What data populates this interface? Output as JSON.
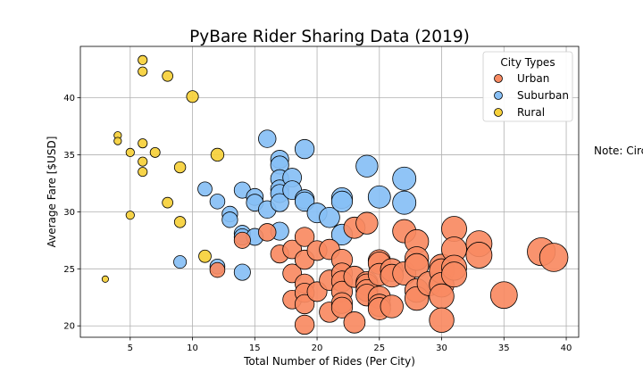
{
  "chart_data": {
    "type": "scatter",
    "title": "PyBare Rider Sharing Data (2019)",
    "xlabel": "Total Number of Rides (Per City)",
    "ylabel": "Average Fare [$USD]",
    "xlim": [
      1,
      41
    ],
    "ylim": [
      19,
      44.5
    ],
    "xticks": [
      5,
      10,
      15,
      20,
      25,
      30,
      35,
      40
    ],
    "yticks": [
      20,
      25,
      30,
      35,
      40
    ],
    "grid": true,
    "legend": {
      "title": "City Types",
      "placement": "top-right",
      "entries": [
        "Urban",
        "Suburban",
        "Rural"
      ]
    },
    "note": "Note: Circle size correlates with driver count per city.",
    "series": [
      {
        "name": "Rural",
        "color": "#f6d03a",
        "points": [
          {
            "x": 3,
            "y": 24.1
          },
          {
            "x": 4,
            "y": 36.7
          },
          {
            "x": 4,
            "y": 36.2
          },
          {
            "x": 5,
            "y": 35.2
          },
          {
            "x": 5,
            "y": 29.7
          },
          {
            "x": 6,
            "y": 43.3
          },
          {
            "x": 6,
            "y": 42.3
          },
          {
            "x": 6,
            "y": 36.0
          },
          {
            "x": 6,
            "y": 34.4
          },
          {
            "x": 6,
            "y": 33.5
          },
          {
            "x": 7,
            "y": 35.2
          },
          {
            "x": 8,
            "y": 41.9
          },
          {
            "x": 8,
            "y": 30.8
          },
          {
            "x": 9,
            "y": 33.9
          },
          {
            "x": 9,
            "y": 29.1
          },
          {
            "x": 10,
            "y": 40.1
          },
          {
            "x": 11,
            "y": 26.1
          },
          {
            "x": 12,
            "y": 35.0
          }
        ]
      },
      {
        "name": "Suburban",
        "color": "#87bff5",
        "points": [
          {
            "x": 9,
            "y": 25.6
          },
          {
            "x": 11,
            "y": 32.0
          },
          {
            "x": 12,
            "y": 30.9
          },
          {
            "x": 12,
            "y": 25.2
          },
          {
            "x": 13,
            "y": 29.8
          },
          {
            "x": 13,
            "y": 29.3
          },
          {
            "x": 14,
            "y": 31.9
          },
          {
            "x": 14,
            "y": 28.1
          },
          {
            "x": 14,
            "y": 27.8
          },
          {
            "x": 14,
            "y": 24.7
          },
          {
            "x": 15,
            "y": 31.3
          },
          {
            "x": 15,
            "y": 30.8
          },
          {
            "x": 15,
            "y": 27.8
          },
          {
            "x": 16,
            "y": 36.4
          },
          {
            "x": 16,
            "y": 30.2
          },
          {
            "x": 17,
            "y": 34.6
          },
          {
            "x": 17,
            "y": 34.1
          },
          {
            "x": 17,
            "y": 32.9
          },
          {
            "x": 17,
            "y": 32.0
          },
          {
            "x": 17,
            "y": 31.6
          },
          {
            "x": 17,
            "y": 30.8
          },
          {
            "x": 17,
            "y": 28.3
          },
          {
            "x": 18,
            "y": 33.0
          },
          {
            "x": 18,
            "y": 31.9
          },
          {
            "x": 19,
            "y": 35.5
          },
          {
            "x": 19,
            "y": 31.1
          },
          {
            "x": 19,
            "y": 30.9
          },
          {
            "x": 20,
            "y": 29.9
          },
          {
            "x": 21,
            "y": 29.5
          },
          {
            "x": 22,
            "y": 31.2
          },
          {
            "x": 22,
            "y": 30.9
          },
          {
            "x": 22,
            "y": 28.0
          },
          {
            "x": 24,
            "y": 34.0
          },
          {
            "x": 25,
            "y": 31.3
          },
          {
            "x": 27,
            "y": 32.9
          },
          {
            "x": 27,
            "y": 30.8
          }
        ]
      },
      {
        "name": "Urban",
        "color": "#f88a62",
        "points": [
          {
            "x": 12,
            "y": 24.9
          },
          {
            "x": 14,
            "y": 27.5
          },
          {
            "x": 16,
            "y": 28.2
          },
          {
            "x": 17,
            "y": 26.3
          },
          {
            "x": 18,
            "y": 26.7
          },
          {
            "x": 18,
            "y": 24.6
          },
          {
            "x": 18,
            "y": 22.3
          },
          {
            "x": 19,
            "y": 27.8
          },
          {
            "x": 19,
            "y": 25.8
          },
          {
            "x": 19,
            "y": 23.7
          },
          {
            "x": 19,
            "y": 22.9
          },
          {
            "x": 19,
            "y": 21.9
          },
          {
            "x": 19,
            "y": 20.1
          },
          {
            "x": 20,
            "y": 26.6
          },
          {
            "x": 20,
            "y": 23.0
          },
          {
            "x": 21,
            "y": 26.7
          },
          {
            "x": 21,
            "y": 24.0
          },
          {
            "x": 21,
            "y": 21.2
          },
          {
            "x": 22,
            "y": 25.8
          },
          {
            "x": 22,
            "y": 24.6
          },
          {
            "x": 22,
            "y": 23.9
          },
          {
            "x": 22,
            "y": 23.0
          },
          {
            "x": 22,
            "y": 22.0
          },
          {
            "x": 22,
            "y": 21.6
          },
          {
            "x": 23,
            "y": 28.6
          },
          {
            "x": 23,
            "y": 24.3
          },
          {
            "x": 23,
            "y": 20.3
          },
          {
            "x": 24,
            "y": 29.0
          },
          {
            "x": 24,
            "y": 23.8
          },
          {
            "x": 24,
            "y": 23.6
          },
          {
            "x": 24,
            "y": 23.1
          },
          {
            "x": 24,
            "y": 22.7
          },
          {
            "x": 25,
            "y": 25.7
          },
          {
            "x": 25,
            "y": 25.5
          },
          {
            "x": 25,
            "y": 24.5
          },
          {
            "x": 25,
            "y": 22.5
          },
          {
            "x": 25,
            "y": 21.8
          },
          {
            "x": 25,
            "y": 21.5
          },
          {
            "x": 26,
            "y": 24.9
          },
          {
            "x": 26,
            "y": 24.4
          },
          {
            "x": 26,
            "y": 21.7
          },
          {
            "x": 27,
            "y": 28.3
          },
          {
            "x": 27,
            "y": 24.6
          },
          {
            "x": 28,
            "y": 27.4
          },
          {
            "x": 28,
            "y": 25.9
          },
          {
            "x": 28,
            "y": 25.3
          },
          {
            "x": 28,
            "y": 23.1
          },
          {
            "x": 28,
            "y": 22.4
          },
          {
            "x": 29,
            "y": 23.7
          },
          {
            "x": 30,
            "y": 25.2
          },
          {
            "x": 30,
            "y": 24.8
          },
          {
            "x": 30,
            "y": 23.6
          },
          {
            "x": 30,
            "y": 22.6
          },
          {
            "x": 30,
            "y": 20.5
          },
          {
            "x": 31,
            "y": 28.5
          },
          {
            "x": 31,
            "y": 26.7
          },
          {
            "x": 31,
            "y": 25.1
          },
          {
            "x": 31,
            "y": 24.5
          },
          {
            "x": 33,
            "y": 27.2
          },
          {
            "x": 33,
            "y": 26.2
          },
          {
            "x": 35,
            "y": 22.7
          },
          {
            "x": 38,
            "y": 26.5
          },
          {
            "x": 39,
            "y": 26.0
          }
        ]
      }
    ]
  }
}
